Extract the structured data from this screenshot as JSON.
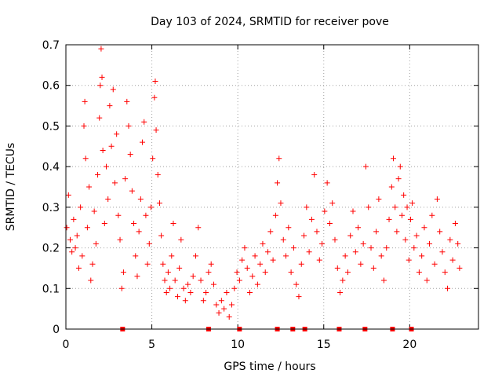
{
  "chart_data": {
    "type": "scatter",
    "title": "Day 103 of 2024, SRMTID for receiver pove",
    "xlabel": "GPS time / hours",
    "ylabel": "SRMTID / TECUs",
    "xlim": [
      0,
      24
    ],
    "ylim": [
      0,
      0.7
    ],
    "xticks": [
      0,
      5,
      10,
      15,
      20
    ],
    "xtick_labels": [
      "0",
      "5",
      "10",
      "15",
      "20"
    ],
    "yticks": [
      0,
      0.1,
      0.2,
      0.3,
      0.4,
      0.5,
      0.6,
      0.7
    ],
    "ytick_labels": [
      "0",
      "0.1",
      "0.2",
      "0.3",
      "0.4",
      "0.5",
      "0.6",
      "0.7"
    ],
    "grid": true,
    "marker": "+",
    "color": "#ff0000",
    "series": [
      {
        "name": "SRMTID",
        "points": [
          [
            0.05,
            0.25
          ],
          [
            0.15,
            0.33
          ],
          [
            0.25,
            0.22
          ],
          [
            0.35,
            0.19
          ],
          [
            0.45,
            0.27
          ],
          [
            0.55,
            0.2
          ],
          [
            0.65,
            0.23
          ],
          [
            0.75,
            0.15
          ],
          [
            0.85,
            0.3
          ],
          [
            0.95,
            0.18
          ],
          [
            1.05,
            0.5
          ],
          [
            1.1,
            0.56
          ],
          [
            1.15,
            0.42
          ],
          [
            1.25,
            0.25
          ],
          [
            1.35,
            0.35
          ],
          [
            1.45,
            0.12
          ],
          [
            1.55,
            0.16
          ],
          [
            1.65,
            0.29
          ],
          [
            1.75,
            0.21
          ],
          [
            1.85,
            0.38
          ],
          [
            1.95,
            0.52
          ],
          [
            2.0,
            0.6
          ],
          [
            2.05,
            0.69
          ],
          [
            2.1,
            0.62
          ],
          [
            2.15,
            0.44
          ],
          [
            2.25,
            0.26
          ],
          [
            2.35,
            0.4
          ],
          [
            2.45,
            0.32
          ],
          [
            2.55,
            0.55
          ],
          [
            2.65,
            0.45
          ],
          [
            2.75,
            0.59
          ],
          [
            2.85,
            0.36
          ],
          [
            2.95,
            0.48
          ],
          [
            3.05,
            0.28
          ],
          [
            3.15,
            0.22
          ],
          [
            3.25,
            0.1
          ],
          [
            3.35,
            0.14
          ],
          [
            3.45,
            0.37
          ],
          [
            3.55,
            0.56
          ],
          [
            3.65,
            0.5
          ],
          [
            3.75,
            0.43
          ],
          [
            3.85,
            0.34
          ],
          [
            3.95,
            0.26
          ],
          [
            4.05,
            0.18
          ],
          [
            4.15,
            0.13
          ],
          [
            4.25,
            0.24
          ],
          [
            4.35,
            0.32
          ],
          [
            4.45,
            0.46
          ],
          [
            4.55,
            0.51
          ],
          [
            4.65,
            0.28
          ],
          [
            4.75,
            0.16
          ],
          [
            4.85,
            0.21
          ],
          [
            4.95,
            0.3
          ],
          [
            5.05,
            0.42
          ],
          [
            5.15,
            0.57
          ],
          [
            5.2,
            0.61
          ],
          [
            5.25,
            0.49
          ],
          [
            5.35,
            0.38
          ],
          [
            5.45,
            0.31
          ],
          [
            5.55,
            0.23
          ],
          [
            5.65,
            0.16
          ],
          [
            5.75,
            0.12
          ],
          [
            5.85,
            0.09
          ],
          [
            5.95,
            0.14
          ],
          [
            6.05,
            0.1
          ],
          [
            6.15,
            0.18
          ],
          [
            6.25,
            0.26
          ],
          [
            6.35,
            0.12
          ],
          [
            6.5,
            0.08
          ],
          [
            6.6,
            0.15
          ],
          [
            6.7,
            0.22
          ],
          [
            6.85,
            0.1
          ],
          [
            6.95,
            0.07
          ],
          [
            7.1,
            0.11
          ],
          [
            7.25,
            0.09
          ],
          [
            7.4,
            0.13
          ],
          [
            7.55,
            0.18
          ],
          [
            7.7,
            0.25
          ],
          [
            7.85,
            0.12
          ],
          [
            8.0,
            0.07
          ],
          [
            8.15,
            0.09
          ],
          [
            8.3,
            0.14
          ],
          [
            8.45,
            0.16
          ],
          [
            8.6,
            0.11
          ],
          [
            8.75,
            0.06
          ],
          [
            8.9,
            0.04
          ],
          [
            9.05,
            0.07
          ],
          [
            9.2,
            0.05
          ],
          [
            9.35,
            0.09
          ],
          [
            9.5,
            0.03
          ],
          [
            9.65,
            0.06
          ],
          [
            9.8,
            0.1
          ],
          [
            9.95,
            0.14
          ],
          [
            10.1,
            0.12
          ],
          [
            10.25,
            0.17
          ],
          [
            10.4,
            0.2
          ],
          [
            10.55,
            0.15
          ],
          [
            10.7,
            0.09
          ],
          [
            10.85,
            0.13
          ],
          [
            11.0,
            0.18
          ],
          [
            11.15,
            0.11
          ],
          [
            11.3,
            0.16
          ],
          [
            11.45,
            0.21
          ],
          [
            11.6,
            0.14
          ],
          [
            11.75,
            0.19
          ],
          [
            11.9,
            0.24
          ],
          [
            12.05,
            0.17
          ],
          [
            12.2,
            0.28
          ],
          [
            12.3,
            0.36
          ],
          [
            12.4,
            0.42
          ],
          [
            12.5,
            0.31
          ],
          [
            12.65,
            0.22
          ],
          [
            12.8,
            0.18
          ],
          [
            12.95,
            0.25
          ],
          [
            13.1,
            0.14
          ],
          [
            13.25,
            0.2
          ],
          [
            13.4,
            0.11
          ],
          [
            13.55,
            0.08
          ],
          [
            13.7,
            0.16
          ],
          [
            13.85,
            0.23
          ],
          [
            14.0,
            0.3
          ],
          [
            14.15,
            0.19
          ],
          [
            14.3,
            0.27
          ],
          [
            14.45,
            0.38
          ],
          [
            14.6,
            0.24
          ],
          [
            14.75,
            0.17
          ],
          [
            14.9,
            0.21
          ],
          [
            15.05,
            0.29
          ],
          [
            15.2,
            0.36
          ],
          [
            15.35,
            0.26
          ],
          [
            15.5,
            0.31
          ],
          [
            15.65,
            0.22
          ],
          [
            15.8,
            0.15
          ],
          [
            15.95,
            0.09
          ],
          [
            16.1,
            0.12
          ],
          [
            16.25,
            0.18
          ],
          [
            16.4,
            0.14
          ],
          [
            16.55,
            0.23
          ],
          [
            16.7,
            0.29
          ],
          [
            16.85,
            0.19
          ],
          [
            17.0,
            0.25
          ],
          [
            17.15,
            0.16
          ],
          [
            17.3,
            0.21
          ],
          [
            17.45,
            0.4
          ],
          [
            17.6,
            0.3
          ],
          [
            17.75,
            0.2
          ],
          [
            17.9,
            0.15
          ],
          [
            18.05,
            0.24
          ],
          [
            18.2,
            0.32
          ],
          [
            18.35,
            0.18
          ],
          [
            18.5,
            0.12
          ],
          [
            18.65,
            0.2
          ],
          [
            18.8,
            0.27
          ],
          [
            18.95,
            0.35
          ],
          [
            19.05,
            0.42
          ],
          [
            19.15,
            0.3
          ],
          [
            19.25,
            0.24
          ],
          [
            19.35,
            0.37
          ],
          [
            19.45,
            0.4
          ],
          [
            19.55,
            0.28
          ],
          [
            19.65,
            0.33
          ],
          [
            19.75,
            0.22
          ],
          [
            19.85,
            0.3
          ],
          [
            19.95,
            0.17
          ],
          [
            20.05,
            0.27
          ],
          [
            20.15,
            0.31
          ],
          [
            20.25,
            0.2
          ],
          [
            20.4,
            0.23
          ],
          [
            20.55,
            0.14
          ],
          [
            20.7,
            0.18
          ],
          [
            20.85,
            0.25
          ],
          [
            21.0,
            0.12
          ],
          [
            21.15,
            0.21
          ],
          [
            21.3,
            0.28
          ],
          [
            21.45,
            0.16
          ],
          [
            21.6,
            0.32
          ],
          [
            21.75,
            0.24
          ],
          [
            21.9,
            0.19
          ],
          [
            22.05,
            0.14
          ],
          [
            22.2,
            0.1
          ],
          [
            22.35,
            0.22
          ],
          [
            22.5,
            0.17
          ],
          [
            22.65,
            0.26
          ],
          [
            22.8,
            0.21
          ],
          [
            22.9,
            0.15
          ]
        ]
      }
    ],
    "gap_markers_x": [
      3.3,
      8.3,
      10.1,
      12.3,
      13.2,
      13.9,
      15.9,
      17.4,
      19.0,
      20.1
    ]
  }
}
